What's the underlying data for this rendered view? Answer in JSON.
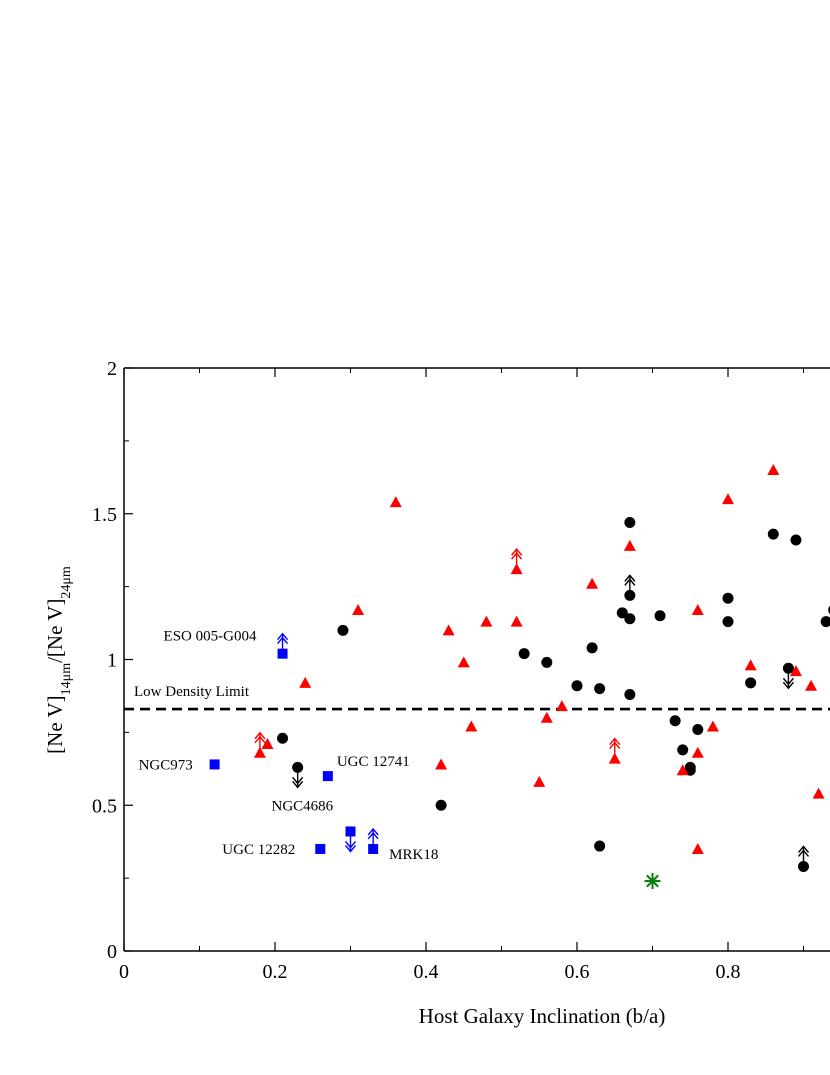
{
  "chart_data": {
    "type": "scatter",
    "xlabel": "Host Galaxy Inclination (b/a)",
    "ylabel_parts": [
      "[Ne V]",
      "14μm",
      "/[Ne V]",
      "24μm"
    ],
    "xlim": [
      0,
      1.0
    ],
    "ylim": [
      0,
      2
    ],
    "x_ticks": [
      "0",
      "0.2",
      "0.4",
      "0.6",
      "0.8"
    ],
    "y_ticks": [
      "0",
      "0.5",
      "1",
      "1.5",
      "2"
    ],
    "grid": false,
    "reference_line": {
      "label": "Low Density Limit",
      "y": 0.83,
      "style": "dashed"
    },
    "series": [
      {
        "marker": "square",
        "color": "#0000ff",
        "points": [
          {
            "x": 0.12,
            "y": 0.64,
            "label": "NGC973"
          },
          {
            "x": 0.21,
            "y": 1.02,
            "label": "ESO 005-G004",
            "limit": "lower"
          },
          {
            "x": 0.26,
            "y": 0.35,
            "label": "UGC 12282"
          },
          {
            "x": 0.27,
            "y": 0.6,
            "label": "UGC 12741"
          },
          {
            "x": 0.3,
            "y": 0.41,
            "label": "NGC4686",
            "limit": "upper"
          },
          {
            "x": 0.33,
            "y": 0.35,
            "label": "MRK18",
            "limit": "lower"
          }
        ]
      },
      {
        "marker": "circle",
        "color": "#000000",
        "points": [
          {
            "x": 0.21,
            "y": 0.73
          },
          {
            "x": 0.23,
            "y": 0.63,
            "limit": "upper"
          },
          {
            "x": 0.29,
            "y": 1.1
          },
          {
            "x": 0.42,
            "y": 0.5
          },
          {
            "x": 0.53,
            "y": 1.02
          },
          {
            "x": 0.56,
            "y": 0.99
          },
          {
            "x": 0.6,
            "y": 0.91
          },
          {
            "x": 0.62,
            "y": 1.04
          },
          {
            "x": 0.63,
            "y": 0.9
          },
          {
            "x": 0.63,
            "y": 0.36
          },
          {
            "x": 0.66,
            "y": 1.16
          },
          {
            "x": 0.67,
            "y": 1.47
          },
          {
            "x": 0.67,
            "y": 1.22,
            "limit": "lower"
          },
          {
            "x": 0.67,
            "y": 1.14
          },
          {
            "x": 0.67,
            "y": 0.88
          },
          {
            "x": 0.71,
            "y": 1.15
          },
          {
            "x": 0.73,
            "y": 0.79
          },
          {
            "x": 0.74,
            "y": 0.69
          },
          {
            "x": 0.75,
            "y": 0.63
          },
          {
            "x": 0.75,
            "y": 0.62
          },
          {
            "x": 0.76,
            "y": 0.76
          },
          {
            "x": 0.8,
            "y": 1.21
          },
          {
            "x": 0.8,
            "y": 1.13
          },
          {
            "x": 0.83,
            "y": 0.92
          },
          {
            "x": 0.86,
            "y": 1.43
          },
          {
            "x": 0.88,
            "y": 0.97,
            "limit": "upper"
          },
          {
            "x": 0.89,
            "y": 1.41
          },
          {
            "x": 0.9,
            "y": 0.29,
            "limit": "lower"
          },
          {
            "x": 0.93,
            "y": 1.13
          },
          {
            "x": 0.94,
            "y": 1.17
          }
        ]
      },
      {
        "marker": "triangle",
        "color": "#ff0000",
        "points": [
          {
            "x": 0.18,
            "y": 0.68,
            "limit": "lower"
          },
          {
            "x": 0.19,
            "y": 0.71
          },
          {
            "x": 0.24,
            "y": 0.92
          },
          {
            "x": 0.31,
            "y": 1.17
          },
          {
            "x": 0.36,
            "y": 1.54
          },
          {
            "x": 0.42,
            "y": 0.64
          },
          {
            "x": 0.43,
            "y": 1.1
          },
          {
            "x": 0.45,
            "y": 0.99
          },
          {
            "x": 0.46,
            "y": 0.77
          },
          {
            "x": 0.48,
            "y": 1.13
          },
          {
            "x": 0.52,
            "y": 1.31,
            "limit": "lower"
          },
          {
            "x": 0.52,
            "y": 1.13
          },
          {
            "x": 0.55,
            "y": 0.58
          },
          {
            "x": 0.56,
            "y": 0.8
          },
          {
            "x": 0.58,
            "y": 0.84
          },
          {
            "x": 0.62,
            "y": 1.26
          },
          {
            "x": 0.65,
            "y": 0.66,
            "limit": "lower"
          },
          {
            "x": 0.67,
            "y": 1.39
          },
          {
            "x": 0.74,
            "y": 0.62
          },
          {
            "x": 0.76,
            "y": 1.17
          },
          {
            "x": 0.76,
            "y": 0.68
          },
          {
            "x": 0.76,
            "y": 0.35
          },
          {
            "x": 0.78,
            "y": 0.77
          },
          {
            "x": 0.8,
            "y": 1.55
          },
          {
            "x": 0.83,
            "y": 0.98
          },
          {
            "x": 0.86,
            "y": 1.65
          },
          {
            "x": 0.89,
            "y": 0.96
          },
          {
            "x": 0.91,
            "y": 0.91
          },
          {
            "x": 0.92,
            "y": 0.54
          }
        ]
      },
      {
        "marker": "asterisk",
        "color": "#008000",
        "points": [
          {
            "x": 0.7,
            "y": 0.24
          }
        ]
      }
    ]
  }
}
